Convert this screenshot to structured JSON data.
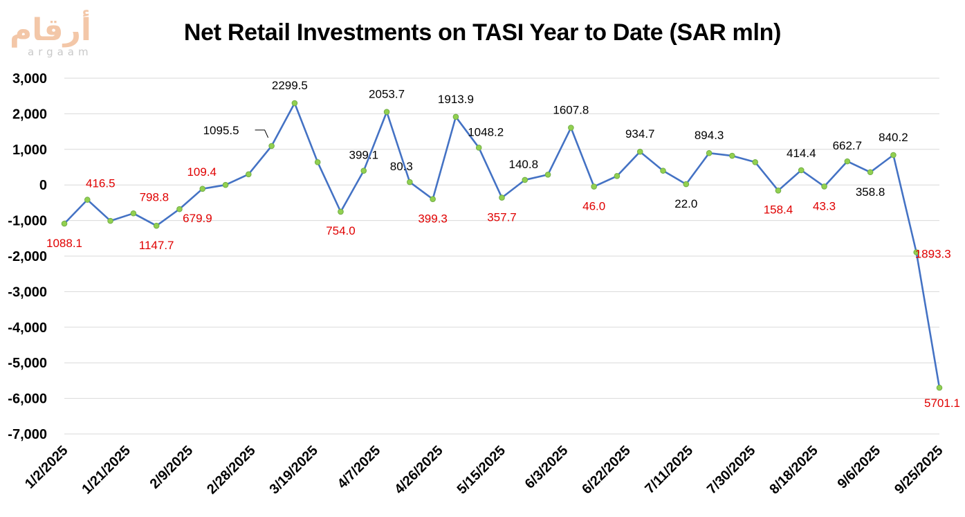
{
  "logo": {
    "arabic": "أرقام",
    "latin": "argaam"
  },
  "colors": {
    "line": "#4472C4",
    "marker_fill": "#92D050",
    "marker_stroke": "#70AD47",
    "negative_label": "#E00000",
    "positive_label": "#000000",
    "grid": "#d9d9d9"
  },
  "chart_data": {
    "type": "line",
    "title": "Net Retail Investments on TASI Year to Date (SAR mln)",
    "xlabel": "",
    "ylabel": "",
    "ylim": [
      -7000,
      3000
    ],
    "yticks": [
      3000,
      2000,
      1000,
      0,
      -1000,
      -2000,
      -3000,
      -4000,
      -5000,
      -6000,
      -7000
    ],
    "ytick_labels": [
      "3,000",
      "2,000",
      "1,000",
      "0",
      "-1,000",
      "-2,000",
      "-3,000",
      "-4,000",
      "-5,000",
      "-6,000",
      "-7,000"
    ],
    "x_tick_labels": [
      "1/2/2025",
      "1/21/2025",
      "2/9/2025",
      "2/28/2025",
      "3/19/2025",
      "4/7/2025",
      "4/26/2025",
      "5/15/2025",
      "6/3/2025",
      "6/22/2025",
      "7/11/2025",
      "7/30/2025",
      "8/18/2025",
      "9/6/2025",
      "9/25/2025"
    ],
    "grid": true,
    "series": [
      {
        "x": [
          "1/2/2025",
          "1/9/2025",
          "1/16/2025",
          "1/23/2025",
          "1/30/2025",
          "2/6/2025",
          "2/13/2025",
          "2/20/2025",
          "2/27/2025",
          "3/6/2025",
          "3/13/2025",
          "3/20/2025",
          "3/27/2025",
          "4/3/2025",
          "4/10/2025",
          "4/17/2025",
          "4/24/2025",
          "5/1/2025",
          "5/8/2025",
          "5/15/2025",
          "5/22/2025",
          "5/29/2025",
          "6/5/2025",
          "6/12/2025",
          "6/19/2025",
          "6/26/2025",
          "7/3/2025",
          "7/10/2025",
          "7/17/2025",
          "7/24/2025",
          "7/31/2025",
          "8/7/2025",
          "8/14/2025",
          "8/21/2025",
          "8/28/2025",
          "9/4/2025",
          "9/11/2025",
          "9/18/2025",
          "9/25/2025"
        ],
        "values": [
          -1088.1,
          -416.5,
          -1010,
          -798.8,
          -1147.7,
          -679.9,
          -109.4,
          0,
          300,
          1095.5,
          2299.5,
          640,
          -754.0,
          399.1,
          2053.7,
          80.3,
          -399.3,
          1913.9,
          1048.2,
          -357.7,
          140.8,
          290,
          1607.8,
          -46.0,
          250,
          934.7,
          400,
          22.0,
          894.3,
          820,
          640,
          -158.4,
          414.4,
          -43.3,
          662.7,
          358.8,
          840.2,
          -1893.3,
          -5701.1
        ]
      }
    ],
    "data_labels": [
      {
        "index": 0,
        "text": "1088.1",
        "negative": true
      },
      {
        "index": 1,
        "text": "416.5",
        "negative": true
      },
      {
        "index": 3,
        "text": "798.8",
        "negative": true
      },
      {
        "index": 4,
        "text": "1147.7",
        "negative": true
      },
      {
        "index": 5,
        "text": "679.9",
        "negative": true
      },
      {
        "index": 6,
        "text": "109.4",
        "negative": true
      },
      {
        "index": 9,
        "text": "1095.5",
        "negative": false
      },
      {
        "index": 10,
        "text": "2299.5",
        "negative": false
      },
      {
        "index": 12,
        "text": "754.0",
        "negative": true
      },
      {
        "index": 13,
        "text": "399.1",
        "negative": false
      },
      {
        "index": 14,
        "text": "2053.7",
        "negative": false
      },
      {
        "index": 15,
        "text": "80.3",
        "negative": false
      },
      {
        "index": 16,
        "text": "399.3",
        "negative": true
      },
      {
        "index": 17,
        "text": "1913.9",
        "negative": false
      },
      {
        "index": 18,
        "text": "1048.2",
        "negative": false
      },
      {
        "index": 19,
        "text": "357.7",
        "negative": true
      },
      {
        "index": 20,
        "text": "140.8",
        "negative": false
      },
      {
        "index": 22,
        "text": "1607.8",
        "negative": false
      },
      {
        "index": 23,
        "text": "46.0",
        "negative": true
      },
      {
        "index": 25,
        "text": "934.7",
        "negative": false
      },
      {
        "index": 27,
        "text": "22.0",
        "negative": false
      },
      {
        "index": 28,
        "text": "894.3",
        "negative": false
      },
      {
        "index": 31,
        "text": "158.4",
        "negative": true
      },
      {
        "index": 32,
        "text": "414.4",
        "negative": false
      },
      {
        "index": 33,
        "text": "43.3",
        "negative": true
      },
      {
        "index": 34,
        "text": "662.7",
        "negative": false
      },
      {
        "index": 35,
        "text": "358.8",
        "negative": false
      },
      {
        "index": 36,
        "text": "840.2",
        "negative": false
      },
      {
        "index": 37,
        "text": "1893.3",
        "negative": true
      },
      {
        "index": 38,
        "text": "5701.1",
        "negative": true
      }
    ]
  }
}
